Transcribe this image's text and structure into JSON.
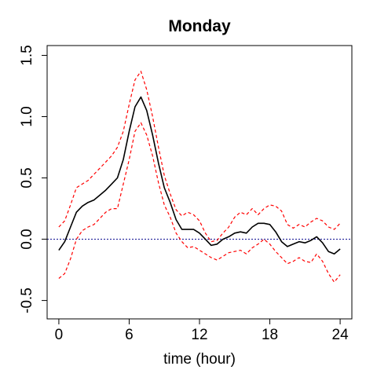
{
  "chart_data": {
    "type": "line",
    "title": "Monday",
    "xlabel": "time (hour)",
    "ylabel": "",
    "xlim": [
      -1,
      25
    ],
    "ylim": [
      -0.65,
      1.58
    ],
    "x_ticks": [
      0,
      6,
      12,
      18,
      24
    ],
    "x_tick_labels": [
      "0",
      "6",
      "12",
      "18",
      "24"
    ],
    "y_ticks": [
      -0.5,
      0.0,
      0.5,
      1.0,
      1.5
    ],
    "y_tick_labels": [
      "-0.5",
      "0.0",
      "0.5",
      "1.0",
      "1.5"
    ],
    "reference_line": {
      "y": 0,
      "style": "dotted",
      "color": "#00008b"
    },
    "grid": false,
    "legend": "none",
    "x": [
      0,
      0.5,
      1,
      1.5,
      2,
      2.5,
      3,
      3.5,
      4,
      4.5,
      5,
      5.5,
      6,
      6.5,
      7,
      7.5,
      8,
      8.5,
      9,
      9.5,
      10,
      10.5,
      11,
      11.5,
      12,
      12.5,
      13,
      13.5,
      14,
      14.5,
      15,
      15.5,
      16,
      16.5,
      17,
      17.5,
      18,
      18.5,
      19,
      19.5,
      20,
      20.5,
      21,
      21.5,
      22,
      22.5,
      23,
      23.5,
      24
    ],
    "series": [
      {
        "color": "#ff0000",
        "dash": "dashed",
        "values": [
          0.1,
          0.15,
          0.28,
          0.42,
          0.45,
          0.48,
          0.53,
          0.58,
          0.63,
          0.68,
          0.75,
          0.88,
          1.1,
          1.3,
          1.37,
          1.22,
          1.0,
          0.75,
          0.52,
          0.37,
          0.24,
          0.19,
          0.22,
          0.2,
          0.15,
          0.05,
          -0.02,
          -0.01,
          0.05,
          0.1,
          0.18,
          0.22,
          0.2,
          0.25,
          0.2,
          0.25,
          0.28,
          0.27,
          0.23,
          0.12,
          0.09,
          0.12,
          0.1,
          0.14,
          0.17,
          0.15,
          0.1,
          0.08,
          0.13
        ]
      },
      {
        "color": "#000000",
        "dash": "solid",
        "values": [
          -0.09,
          -0.02,
          0.1,
          0.22,
          0.27,
          0.3,
          0.32,
          0.36,
          0.4,
          0.45,
          0.5,
          0.65,
          0.88,
          1.08,
          1.16,
          1.05,
          0.85,
          0.62,
          0.42,
          0.3,
          0.16,
          0.08,
          0.08,
          0.08,
          0.05,
          0.0,
          -0.05,
          -0.04,
          0.0,
          0.02,
          0.05,
          0.06,
          0.05,
          0.1,
          0.13,
          0.13,
          0.12,
          0.06,
          -0.02,
          -0.06,
          -0.04,
          -0.02,
          -0.03,
          -0.01,
          0.02,
          -0.03,
          -0.1,
          -0.12,
          -0.08
        ]
      },
      {
        "color": "#ff0000",
        "dash": "dashed",
        "values": [
          -0.32,
          -0.28,
          -0.16,
          0.0,
          0.07,
          0.1,
          0.12,
          0.17,
          0.22,
          0.25,
          0.25,
          0.45,
          0.65,
          0.88,
          0.95,
          0.85,
          0.68,
          0.46,
          0.28,
          0.18,
          0.05,
          -0.02,
          -0.07,
          -0.06,
          -0.09,
          -0.12,
          -0.15,
          -0.17,
          -0.14,
          -0.11,
          -0.1,
          -0.09,
          -0.12,
          -0.07,
          -0.04,
          0.0,
          -0.04,
          -0.1,
          -0.15,
          -0.2,
          -0.18,
          -0.15,
          -0.18,
          -0.19,
          -0.12,
          -0.18,
          -0.28,
          -0.35,
          -0.29
        ]
      }
    ]
  }
}
